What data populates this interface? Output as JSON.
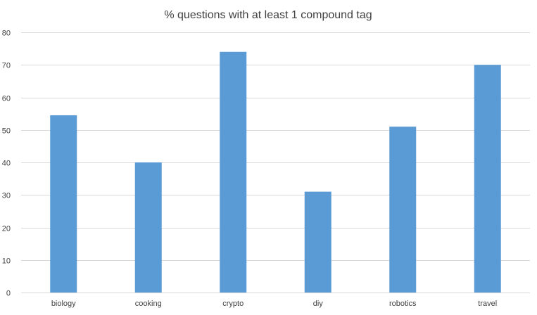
{
  "chart_data": {
    "type": "bar",
    "title": "% questions with at least 1 compound tag",
    "xlabel": "",
    "ylabel": "",
    "categories": [
      "biology",
      "cooking",
      "crypto",
      "diy",
      "robotics",
      "travel"
    ],
    "values": [
      54.5,
      40,
      74,
      31,
      51,
      70
    ],
    "ylim": [
      0,
      80
    ],
    "yticks": [
      0,
      10,
      20,
      30,
      40,
      50,
      60,
      70,
      80
    ],
    "grid": true,
    "legend": "none",
    "colors": {
      "bar": "#5b9bd5",
      "grid": "#d9d9d9",
      "text": "#404040"
    }
  }
}
